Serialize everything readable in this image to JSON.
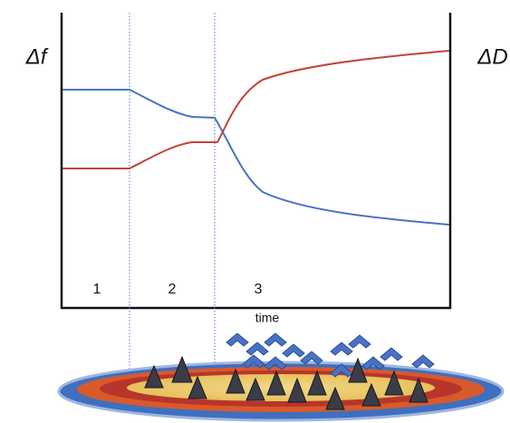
{
  "axes": {
    "y_left_label": "Δf",
    "y_right_label": "ΔD",
    "x_label": "time"
  },
  "phases": [
    "1",
    "2",
    "3"
  ]
}
